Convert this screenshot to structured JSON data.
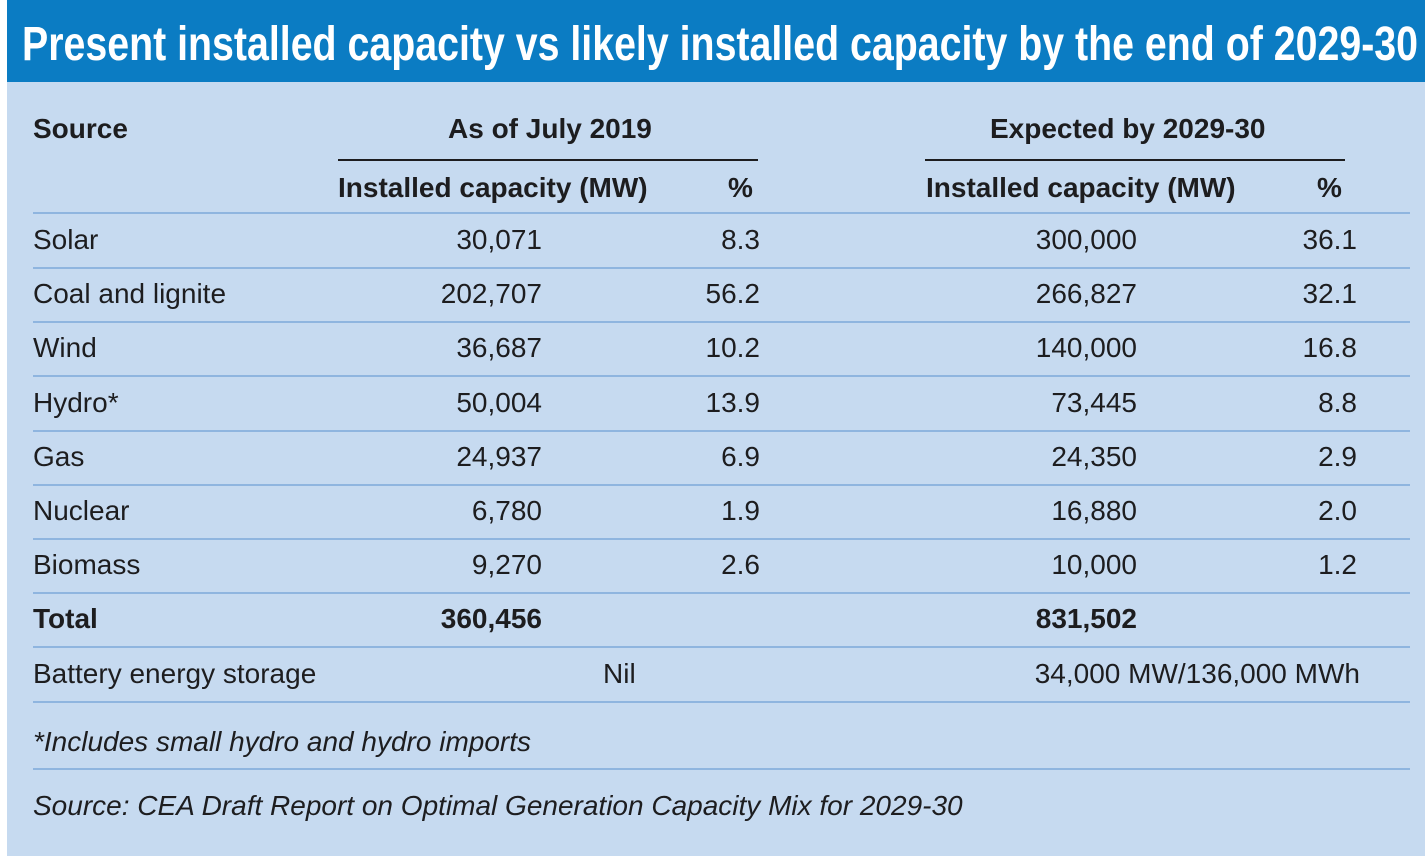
{
  "title": "Present installed capacity vs likely installed capacity by the end of 2029-30",
  "header": {
    "source": "Source",
    "group1": "As of July 2019",
    "group2": "Expected by 2029-30",
    "cap1": "Installed capacity (MW)",
    "pct1": "%",
    "cap2": "Installed capacity (MW)",
    "pct2": "%"
  },
  "rows": [
    {
      "source": "Solar",
      "cap2019": "30,071",
      "pct2019": "8.3",
      "cap2030": "300,000",
      "pct2030": "36.1"
    },
    {
      "source": "Coal and lignite",
      "cap2019": "202,707",
      "pct2019": "56.2",
      "cap2030": "266,827",
      "pct2030": "32.1"
    },
    {
      "source": "Wind",
      "cap2019": "36,687",
      "pct2019": "10.2",
      "cap2030": "140,000",
      "pct2030": "16.8"
    },
    {
      "source": "Hydro*",
      "cap2019": "50,004",
      "pct2019": "13.9",
      "cap2030": "73,445",
      "pct2030": "8.8"
    },
    {
      "source": "Gas",
      "cap2019": "24,937",
      "pct2019": "6.9",
      "cap2030": "24,350",
      "pct2030": "2.9"
    },
    {
      "source": "Nuclear",
      "cap2019": "6,780",
      "pct2019": "1.9",
      "cap2030": "16,880",
      "pct2030": "2.0"
    },
    {
      "source": "Biomass",
      "cap2019": "9,270",
      "pct2019": "2.6",
      "cap2030": "10,000",
      "pct2030": "1.2"
    }
  ],
  "total": {
    "label": "Total",
    "cap2019": "360,456",
    "cap2030": "831,502"
  },
  "battery": {
    "label": "Battery energy storage",
    "val2019": "Nil",
    "val2030": "34,000 MW/136,000 MWh"
  },
  "footnote": "*Includes small hydro and hydro imports",
  "source_note": "Source: CEA Draft Report on Optimal Generation Capacity Mix for 2029-30",
  "colors": {
    "title_bg": "#0b7cc3",
    "panel_bg": "#c6daf0",
    "row_line": "#8fb5df"
  }
}
